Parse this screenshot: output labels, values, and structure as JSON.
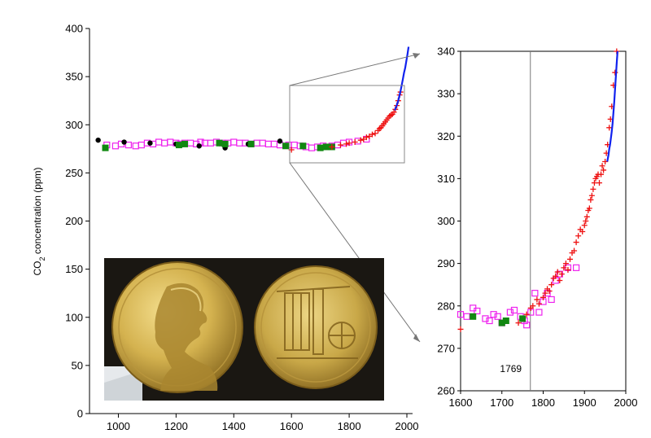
{
  "chart_data": [
    {
      "type": "scatter",
      "title": "",
      "xlabel": "",
      "ylabel": "CO2 concentration (ppm)",
      "ylabel_main": "CO",
      "ylabel_sub": "2",
      "ylabel_rest": " concentration (ppm)",
      "xlim": [
        900,
        2000
      ],
      "ylim": [
        0,
        400
      ],
      "xticks": [
        "1000",
        "1200",
        "1400",
        "1600",
        "1800",
        "2000"
      ],
      "yticks": [
        "0",
        "50",
        "100",
        "150",
        "200",
        "250",
        "300",
        "350",
        "400"
      ],
      "grid": false,
      "series": [
        {
          "marker": "open-square",
          "color": "#ee22ee",
          "points": [
            [
              960,
              279
            ],
            [
              990,
              278
            ],
            [
              1010,
              280
            ],
            [
              1035,
              279
            ],
            [
              1060,
              278
            ],
            [
              1080,
              279
            ],
            [
              1100,
              281
            ],
            [
              1120,
              280
            ],
            [
              1140,
              282
            ],
            [
              1160,
              281
            ],
            [
              1180,
              282
            ],
            [
              1200,
              281
            ],
            [
              1215,
              280
            ],
            [
              1230,
              281
            ],
            [
              1250,
              281
            ],
            [
              1270,
              280
            ],
            [
              1285,
              282
            ],
            [
              1300,
              281
            ],
            [
              1320,
              281
            ],
            [
              1340,
              282
            ],
            [
              1360,
              281
            ],
            [
              1380,
              281
            ],
            [
              1400,
              282
            ],
            [
              1420,
              281
            ],
            [
              1440,
              281
            ],
            [
              1460,
              280
            ],
            [
              1480,
              281
            ],
            [
              1500,
              281
            ],
            [
              1520,
              280
            ],
            [
              1540,
              280
            ],
            [
              1560,
              279
            ],
            [
              1590,
              279
            ],
            [
              1610,
              279
            ],
            [
              1630,
              278
            ],
            [
              1650,
              277
            ],
            [
              1670,
              276
            ],
            [
              1690,
              277
            ],
            [
              1710,
              278
            ],
            [
              1740,
              278
            ],
            [
              1760,
              279
            ],
            [
              1780,
              281
            ],
            [
              1800,
              282
            ],
            [
              1830,
              283
            ],
            [
              1860,
              285
            ]
          ]
        },
        {
          "marker": "filled-circle",
          "color": "#000000",
          "points": [
            [
              930,
              284
            ],
            [
              1020,
              282
            ],
            [
              1110,
              281
            ],
            [
              1200,
              280
            ],
            [
              1280,
              278
            ],
            [
              1370,
              276
            ],
            [
              1450,
              280
            ],
            [
              1560,
              283
            ]
          ]
        },
        {
          "marker": "filled-square",
          "color": "#118811",
          "points": [
            [
              955,
              276
            ],
            [
              1210,
              279
            ],
            [
              1230,
              280
            ],
            [
              1350,
              281
            ],
            [
              1370,
              280
            ],
            [
              1460,
              280
            ],
            [
              1580,
              278
            ],
            [
              1640,
              278
            ],
            [
              1700,
              276
            ],
            [
              1720,
              277
            ],
            [
              1740,
              277
            ]
          ]
        },
        {
          "marker": "plus",
          "color": "#ee1111",
          "points": [
            [
              1600,
              274
            ],
            [
              1740,
              277
            ],
            [
              1770,
              279
            ],
            [
              1790,
              280
            ],
            [
              1800,
              281
            ],
            [
              1820,
              282
            ],
            [
              1840,
              284
            ],
            [
              1850,
              285
            ],
            [
              1860,
              287
            ],
            [
              1870,
              288
            ],
            [
              1880,
              290
            ],
            [
              1890,
              291
            ],
            [
              1900,
              294
            ],
            [
              1905,
              296
            ],
            [
              1910,
              297
            ],
            [
              1915,
              299
            ],
            [
              1920,
              301
            ],
            [
              1925,
              303
            ],
            [
              1930,
              305
            ],
            [
              1935,
              307
            ],
            [
              1940,
              309
            ],
            [
              1945,
              310
            ],
            [
              1950,
              311
            ],
            [
              1955,
              313
            ],
            [
              1960,
              316
            ],
            [
              1965,
              320
            ],
            [
              1970,
              325
            ],
            [
              1975,
              331
            ],
            [
              1978,
              334
            ]
          ]
        },
        {
          "marker": "line",
          "color": "#1122ee",
          "points": [
            [
              1958,
              315
            ],
            [
              1962,
              318
            ],
            [
              1966,
              321
            ],
            [
              1970,
              325
            ],
            [
              1974,
              330
            ],
            [
              1978,
              335
            ],
            [
              1982,
              341
            ],
            [
              1986,
              347
            ],
            [
              1990,
              354
            ],
            [
              1994,
              359
            ],
            [
              1998,
              366
            ],
            [
              2002,
              373
            ],
            [
              2006,
              381
            ]
          ]
        }
      ],
      "zoom_box": {
        "x": [
          1600,
          2000
        ],
        "y": [
          260,
          340
        ]
      }
    },
    {
      "type": "scatter",
      "title": "",
      "xlabel": "",
      "ylabel": "",
      "xlim": [
        1600,
        2000
      ],
      "ylim": [
        260,
        340
      ],
      "xticks": [
        "1600",
        "1700",
        "1800",
        "1900",
        "2000"
      ],
      "yticks": [
        "260",
        "270",
        "280",
        "290",
        "300",
        "310",
        "320",
        "330",
        "340"
      ],
      "grid": false,
      "annotation": {
        "x": 1769,
        "label": "1769"
      },
      "series": [
        {
          "marker": "open-square",
          "color": "#ee22ee",
          "points": [
            [
              1600,
              278
            ],
            [
              1615,
              277.5
            ],
            [
              1630,
              279.5
            ],
            [
              1640,
              278.8
            ],
            [
              1660,
              277
            ],
            [
              1670,
              276.5
            ],
            [
              1680,
              278
            ],
            [
              1690,
              277.5
            ],
            [
              1700,
              276
            ],
            [
              1720,
              278.5
            ],
            [
              1730,
              279
            ],
            [
              1745,
              277.5
            ],
            [
              1755,
              276.5
            ],
            [
              1760,
              275.5
            ],
            [
              1770,
              278.5
            ],
            [
              1780,
              283
            ],
            [
              1790,
              278.5
            ],
            [
              1800,
              281
            ],
            [
              1810,
              283
            ],
            [
              1820,
              281.5
            ],
            [
              1830,
              286
            ],
            [
              1840,
              287.5
            ],
            [
              1860,
              289
            ],
            [
              1880,
              289
            ]
          ]
        },
        {
          "marker": "filled-square",
          "color": "#118811",
          "points": [
            [
              1630,
              277.5
            ],
            [
              1700,
              276
            ],
            [
              1710,
              276.5
            ],
            [
              1750,
              277
            ]
          ]
        },
        {
          "marker": "plus",
          "color": "#ee1111",
          "points": [
            [
              1600,
              274.5
            ],
            [
              1740,
              276
            ],
            [
              1760,
              278
            ],
            [
              1770,
              279.5
            ],
            [
              1775,
              280
            ],
            [
              1785,
              281.5
            ],
            [
              1790,
              280.5
            ],
            [
              1800,
              282
            ],
            [
              1805,
              283
            ],
            [
              1810,
              284
            ],
            [
              1815,
              283.5
            ],
            [
              1820,
              285
            ],
            [
              1825,
              286.5
            ],
            [
              1830,
              287
            ],
            [
              1835,
              288
            ],
            [
              1840,
              286
            ],
            [
              1845,
              287.5
            ],
            [
              1850,
              289
            ],
            [
              1855,
              290
            ],
            [
              1860,
              288.5
            ],
            [
              1865,
              291
            ],
            [
              1870,
              292.5
            ],
            [
              1875,
              293
            ],
            [
              1880,
              295
            ],
            [
              1885,
              296.5
            ],
            [
              1890,
              298
            ],
            [
              1895,
              297.5
            ],
            [
              1900,
              299
            ],
            [
              1903,
              300
            ],
            [
              1906,
              301
            ],
            [
              1909,
              302.5
            ],
            [
              1912,
              303
            ],
            [
              1915,
              305
            ],
            [
              1918,
              306
            ],
            [
              1921,
              307.5
            ],
            [
              1924,
              309
            ],
            [
              1927,
              310
            ],
            [
              1930,
              310.5
            ],
            [
              1933,
              311
            ],
            [
              1936,
              309
            ],
            [
              1940,
              311
            ],
            [
              1943,
              313
            ],
            [
              1946,
              312
            ],
            [
              1950,
              314
            ],
            [
              1953,
              316
            ],
            [
              1956,
              318
            ],
            [
              1960,
              322
            ],
            [
              1963,
              324
            ],
            [
              1966,
              327
            ],
            [
              1970,
              332
            ],
            [
              1974,
              335
            ],
            [
              1978,
              340
            ]
          ]
        },
        {
          "marker": "line",
          "color": "#1122ee",
          "points": [
            [
              1955,
              314
            ],
            [
              1958,
              315.5
            ],
            [
              1960,
              317
            ],
            [
              1962,
              318
            ],
            [
              1964,
              319.5
            ],
            [
              1966,
              321
            ],
            [
              1968,
              323
            ],
            [
              1970,
              325.5
            ],
            [
              1972,
              328
            ],
            [
              1974,
              331
            ],
            [
              1976,
              334
            ],
            [
              1978,
              337
            ],
            [
              1980,
              340
            ]
          ]
        }
      ]
    }
  ],
  "inset_image": {
    "description_icon": "medal-photo-icon",
    "colors": {
      "background": "#1a1712",
      "gold_light": "#e8cf7a",
      "gold_dark": "#9a7b2e"
    }
  }
}
